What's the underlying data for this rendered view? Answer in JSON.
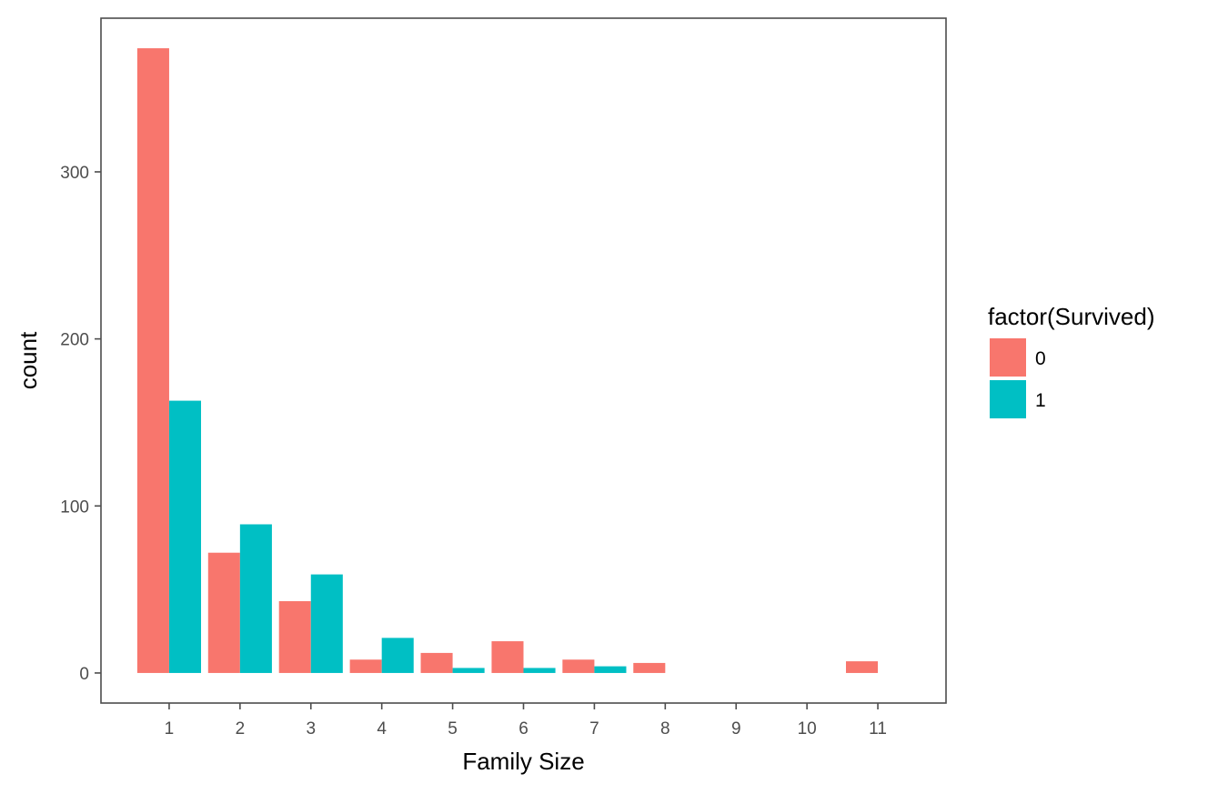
{
  "chart_data": {
    "type": "bar",
    "layout": "dodge",
    "title": "",
    "xlabel": "Family Size",
    "ylabel": "count",
    "categories": [
      1,
      2,
      3,
      4,
      5,
      6,
      7,
      8,
      9,
      10,
      11
    ],
    "ylim": [
      -18,
      392
    ],
    "yticks": [
      0,
      100,
      200,
      300
    ],
    "grid": false,
    "series": [
      {
        "name": "0",
        "color": "#F8766D",
        "values": [
          374,
          72,
          43,
          8,
          12,
          19,
          8,
          6,
          0,
          0,
          7
        ]
      },
      {
        "name": "1",
        "color": "#00BFC4",
        "values": [
          163,
          89,
          59,
          21,
          3,
          3,
          4,
          0,
          0,
          0,
          0
        ]
      }
    ],
    "legend": {
      "title": "factor(Survived)",
      "placement": "right"
    }
  }
}
